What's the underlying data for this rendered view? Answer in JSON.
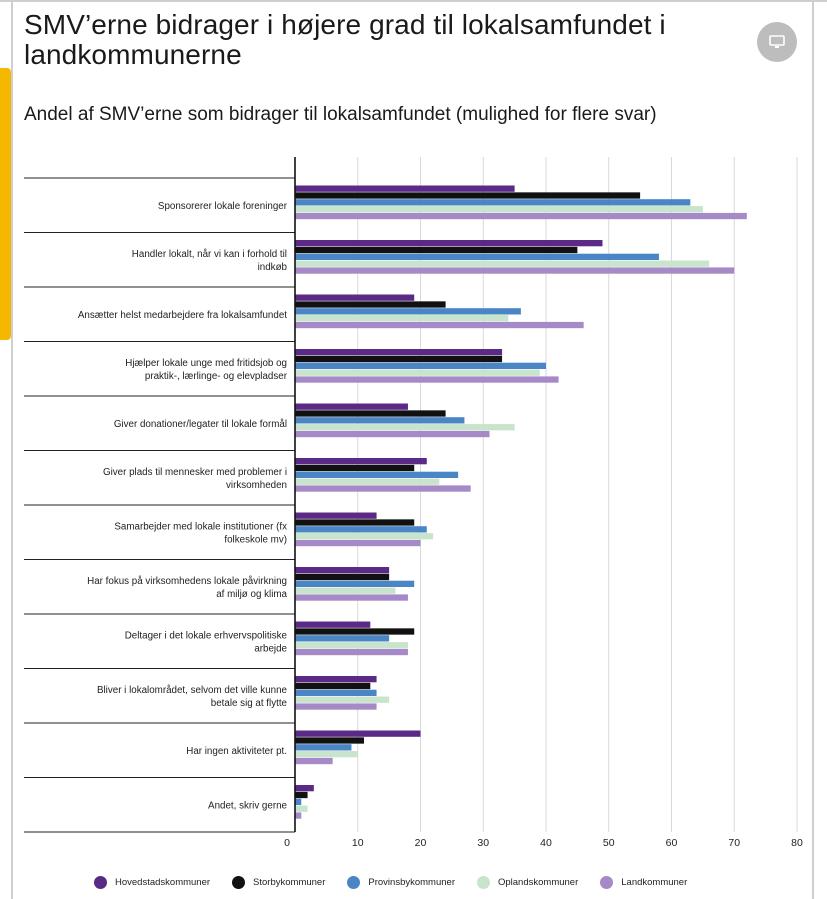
{
  "page": {
    "title": "SMV’erne bidrager i højere grad til lokalsamfundet i landkommunerne",
    "display_icon": "monitor-icon"
  },
  "chart_data": {
    "type": "bar",
    "orientation": "horizontal",
    "title": "Andel af SMV’erne som bidrager til lokalsamfundet (mulighed for flere svar)",
    "xlabel": "",
    "ylabel": "",
    "xlim": [
      0,
      80
    ],
    "xticks": [
      0,
      10,
      20,
      30,
      40,
      50,
      60,
      70,
      80
    ],
    "grid": true,
    "legend_position": "bottom",
    "categories": [
      "Sponsorerer lokale foreninger",
      "Handler lokalt, når vi kan i forhold til indkøb",
      "Ansætter helst medarbejdere fra lokalsamfundet",
      "Hjælper lokale unge med fritidsjob og praktik-, lærlinge- og elevpladser",
      "Giver donationer/legater til lokale formål",
      "Giver plads til mennesker med problemer i virksomheden",
      "Samarbejder med lokale institutioner (fx folkeskole mv)",
      "Har fokus på virksomhedens lokale påvirkning af miljø og klima",
      "Deltager i det lokale erhvervspolitiske arbejde",
      "Bliver i lokalområdet, selvom det ville kunne betale sig at flytte",
      "Har ingen aktiviteter pt.",
      "Andet, skriv gerne"
    ],
    "series": [
      {
        "name": "Hovedstadskommuner",
        "color": "#5b2a86",
        "values": [
          35,
          49,
          19,
          33,
          18,
          21,
          13,
          15,
          12,
          13,
          20,
          3
        ]
      },
      {
        "name": "Storbykommuner",
        "color": "#111111",
        "values": [
          55,
          45,
          24,
          33,
          24,
          19,
          19,
          15,
          19,
          12,
          11,
          2
        ]
      },
      {
        "name": "Provinsbykommuner",
        "color": "#4a86c5",
        "values": [
          63,
          58,
          36,
          40,
          27,
          26,
          21,
          19,
          15,
          13,
          9,
          1
        ]
      },
      {
        "name": "Oplandskommuner",
        "color": "#c9e4cc",
        "values": [
          65,
          66,
          34,
          39,
          35,
          23,
          22,
          16,
          18,
          15,
          10,
          2
        ]
      },
      {
        "name": "Landkommuner",
        "color": "#a68ac8",
        "values": [
          72,
          70,
          46,
          42,
          31,
          28,
          20,
          18,
          18,
          13,
          6,
          1
        ]
      }
    ]
  }
}
